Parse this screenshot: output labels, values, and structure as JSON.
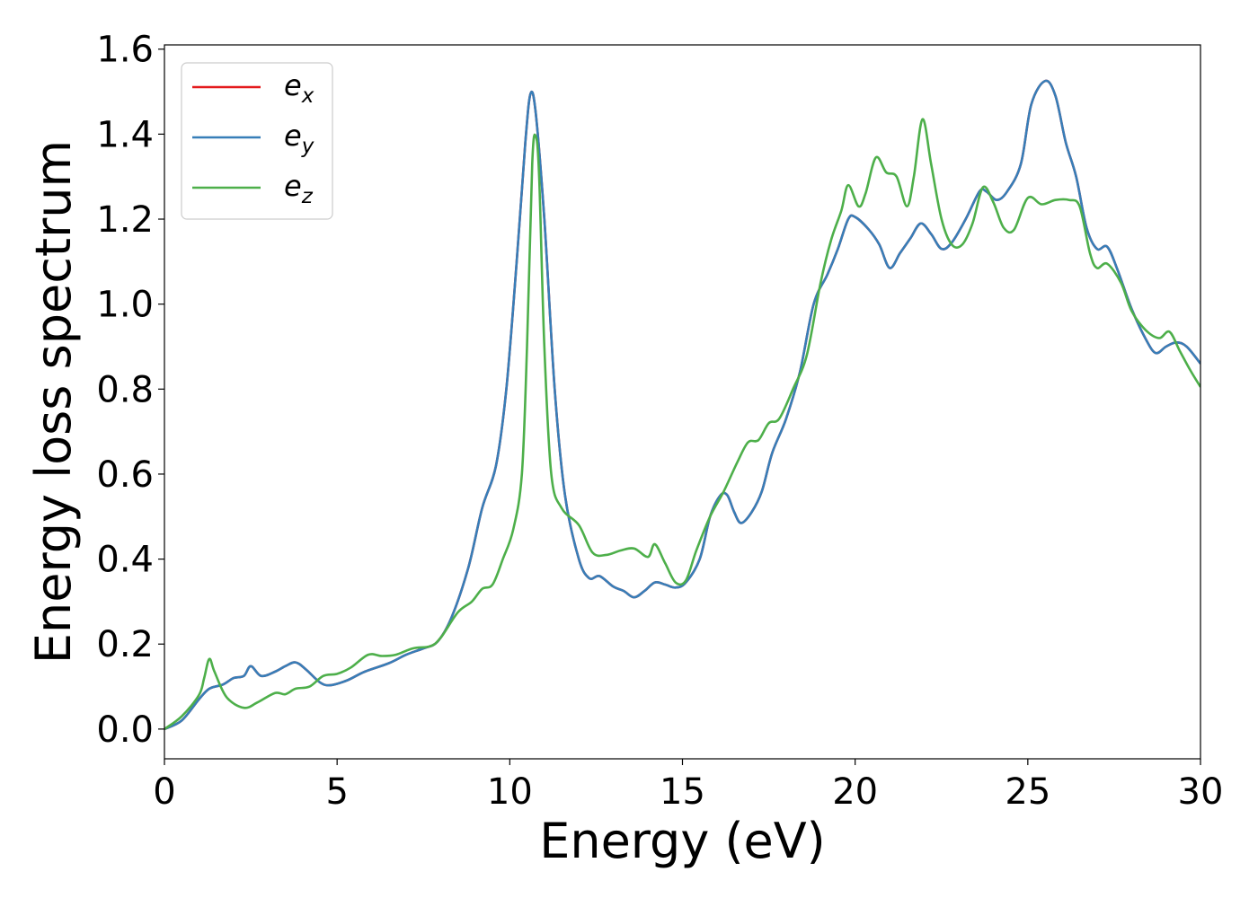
{
  "chart_data": {
    "type": "line",
    "title": "",
    "xlabel": "Energy (eV)",
    "ylabel": "Energy loss spectrum",
    "xlim": [
      0,
      30
    ],
    "ylim": [
      -0.07,
      1.61
    ],
    "xticks": [
      0,
      5,
      10,
      15,
      20,
      25,
      30
    ],
    "xtick_labels": [
      "0",
      "5",
      "10",
      "15",
      "20",
      "25",
      "30"
    ],
    "yticks": [
      0.0,
      0.2,
      0.4,
      0.6,
      0.8,
      1.0,
      1.2,
      1.4,
      1.6
    ],
    "ytick_labels": [
      "0.0",
      "0.2",
      "0.4",
      "0.6",
      "0.8",
      "1.0",
      "1.2",
      "1.4",
      "1.6"
    ],
    "grid": false,
    "legend_position": "top-left",
    "series": [
      {
        "name": "e_x",
        "label_base": "e",
        "label_sub": "x",
        "color": "#e41a1c",
        "points": [
          [
            0,
            0
          ],
          [
            0.5,
            0.02
          ],
          [
            1,
            0.07
          ],
          [
            1.3,
            0.095
          ],
          [
            1.7,
            0.105
          ],
          [
            2,
            0.12
          ],
          [
            2.3,
            0.125
          ],
          [
            2.5,
            0.148
          ],
          [
            2.8,
            0.125
          ],
          [
            3.2,
            0.135
          ],
          [
            3.5,
            0.148
          ],
          [
            3.8,
            0.157
          ],
          [
            4.1,
            0.14
          ],
          [
            4.5,
            0.11
          ],
          [
            4.8,
            0.103
          ],
          [
            5.3,
            0.115
          ],
          [
            5.8,
            0.135
          ],
          [
            6.5,
            0.155
          ],
          [
            7,
            0.175
          ],
          [
            7.5,
            0.19
          ],
          [
            7.9,
            0.205
          ],
          [
            8.3,
            0.26
          ],
          [
            8.8,
            0.38
          ],
          [
            9.2,
            0.52
          ],
          [
            9.6,
            0.62
          ],
          [
            9.9,
            0.8
          ],
          [
            10.2,
            1.1
          ],
          [
            10.45,
            1.38
          ],
          [
            10.6,
            1.495
          ],
          [
            10.75,
            1.45
          ],
          [
            11,
            1.2
          ],
          [
            11.3,
            0.8
          ],
          [
            11.6,
            0.55
          ],
          [
            12,
            0.4
          ],
          [
            12.3,
            0.355
          ],
          [
            12.6,
            0.36
          ],
          [
            13,
            0.335
          ],
          [
            13.3,
            0.325
          ],
          [
            13.6,
            0.31
          ],
          [
            13.9,
            0.325
          ],
          [
            14.2,
            0.345
          ],
          [
            14.5,
            0.34
          ],
          [
            14.8,
            0.333
          ],
          [
            15.1,
            0.345
          ],
          [
            15.5,
            0.4
          ],
          [
            15.8,
            0.5
          ],
          [
            16.1,
            0.55
          ],
          [
            16.3,
            0.55
          ],
          [
            16.5,
            0.51
          ],
          [
            16.7,
            0.485
          ],
          [
            17,
            0.51
          ],
          [
            17.3,
            0.56
          ],
          [
            17.6,
            0.65
          ],
          [
            18,
            0.73
          ],
          [
            18.4,
            0.84
          ],
          [
            18.8,
            1.0
          ],
          [
            19.2,
            1.07
          ],
          [
            19.5,
            1.13
          ],
          [
            19.8,
            1.2
          ],
          [
            20,
            1.205
          ],
          [
            20.4,
            1.175
          ],
          [
            20.7,
            1.14
          ],
          [
            21,
            1.085
          ],
          [
            21.3,
            1.12
          ],
          [
            21.6,
            1.155
          ],
          [
            21.9,
            1.19
          ],
          [
            22.2,
            1.165
          ],
          [
            22.5,
            1.13
          ],
          [
            22.8,
            1.145
          ],
          [
            23.2,
            1.2
          ],
          [
            23.6,
            1.265
          ],
          [
            23.8,
            1.265
          ],
          [
            24.1,
            1.245
          ],
          [
            24.4,
            1.265
          ],
          [
            24.8,
            1.33
          ],
          [
            25.1,
            1.47
          ],
          [
            25.5,
            1.525
          ],
          [
            25.8,
            1.49
          ],
          [
            26.1,
            1.38
          ],
          [
            26.4,
            1.3
          ],
          [
            26.7,
            1.18
          ],
          [
            27,
            1.13
          ],
          [
            27.3,
            1.135
          ],
          [
            27.6,
            1.08
          ],
          [
            28,
            0.99
          ],
          [
            28.4,
            0.92
          ],
          [
            28.7,
            0.885
          ],
          [
            29,
            0.9
          ],
          [
            29.3,
            0.91
          ],
          [
            29.6,
            0.9
          ],
          [
            30,
            0.86
          ]
        ]
      },
      {
        "name": "e_y",
        "label_base": "e",
        "label_sub": "y",
        "color": "#377eb8",
        "points": [
          [
            0,
            0
          ],
          [
            0.5,
            0.02
          ],
          [
            1,
            0.07
          ],
          [
            1.3,
            0.095
          ],
          [
            1.7,
            0.105
          ],
          [
            2,
            0.12
          ],
          [
            2.3,
            0.125
          ],
          [
            2.5,
            0.148
          ],
          [
            2.8,
            0.125
          ],
          [
            3.2,
            0.135
          ],
          [
            3.5,
            0.148
          ],
          [
            3.8,
            0.157
          ],
          [
            4.1,
            0.14
          ],
          [
            4.5,
            0.11
          ],
          [
            4.8,
            0.103
          ],
          [
            5.3,
            0.115
          ],
          [
            5.8,
            0.135
          ],
          [
            6.5,
            0.155
          ],
          [
            7,
            0.175
          ],
          [
            7.5,
            0.19
          ],
          [
            7.9,
            0.205
          ],
          [
            8.3,
            0.26
          ],
          [
            8.8,
            0.38
          ],
          [
            9.2,
            0.52
          ],
          [
            9.6,
            0.62
          ],
          [
            9.9,
            0.8
          ],
          [
            10.2,
            1.1
          ],
          [
            10.45,
            1.38
          ],
          [
            10.6,
            1.495
          ],
          [
            10.75,
            1.45
          ],
          [
            11,
            1.2
          ],
          [
            11.3,
            0.8
          ],
          [
            11.6,
            0.55
          ],
          [
            12,
            0.4
          ],
          [
            12.3,
            0.355
          ],
          [
            12.6,
            0.36
          ],
          [
            13,
            0.335
          ],
          [
            13.3,
            0.325
          ],
          [
            13.6,
            0.31
          ],
          [
            13.9,
            0.325
          ],
          [
            14.2,
            0.345
          ],
          [
            14.5,
            0.34
          ],
          [
            14.8,
            0.333
          ],
          [
            15.1,
            0.345
          ],
          [
            15.5,
            0.4
          ],
          [
            15.8,
            0.5
          ],
          [
            16.1,
            0.55
          ],
          [
            16.3,
            0.55
          ],
          [
            16.5,
            0.51
          ],
          [
            16.7,
            0.485
          ],
          [
            17,
            0.51
          ],
          [
            17.3,
            0.56
          ],
          [
            17.6,
            0.65
          ],
          [
            18,
            0.73
          ],
          [
            18.4,
            0.84
          ],
          [
            18.8,
            1.0
          ],
          [
            19.2,
            1.07
          ],
          [
            19.5,
            1.13
          ],
          [
            19.8,
            1.2
          ],
          [
            20,
            1.205
          ],
          [
            20.4,
            1.175
          ],
          [
            20.7,
            1.14
          ],
          [
            21,
            1.085
          ],
          [
            21.3,
            1.12
          ],
          [
            21.6,
            1.155
          ],
          [
            21.9,
            1.19
          ],
          [
            22.2,
            1.165
          ],
          [
            22.5,
            1.13
          ],
          [
            22.8,
            1.145
          ],
          [
            23.2,
            1.2
          ],
          [
            23.6,
            1.265
          ],
          [
            23.8,
            1.265
          ],
          [
            24.1,
            1.245
          ],
          [
            24.4,
            1.265
          ],
          [
            24.8,
            1.33
          ],
          [
            25.1,
            1.47
          ],
          [
            25.5,
            1.525
          ],
          [
            25.8,
            1.49
          ],
          [
            26.1,
            1.38
          ],
          [
            26.4,
            1.3
          ],
          [
            26.7,
            1.18
          ],
          [
            27,
            1.13
          ],
          [
            27.3,
            1.135
          ],
          [
            27.6,
            1.08
          ],
          [
            28,
            0.99
          ],
          [
            28.4,
            0.92
          ],
          [
            28.7,
            0.885
          ],
          [
            29,
            0.9
          ],
          [
            29.3,
            0.91
          ],
          [
            29.6,
            0.9
          ],
          [
            30,
            0.86
          ]
        ]
      },
      {
        "name": "e_z",
        "label_base": "e",
        "label_sub": "z",
        "color": "#4daf4a",
        "points": [
          [
            0,
            0
          ],
          [
            0.5,
            0.03
          ],
          [
            1,
            0.08
          ],
          [
            1.15,
            0.12
          ],
          [
            1.3,
            0.165
          ],
          [
            1.45,
            0.135
          ],
          [
            1.8,
            0.075
          ],
          [
            2.3,
            0.05
          ],
          [
            2.7,
            0.063
          ],
          [
            3.2,
            0.085
          ],
          [
            3.5,
            0.082
          ],
          [
            3.8,
            0.095
          ],
          [
            4.2,
            0.1
          ],
          [
            4.6,
            0.125
          ],
          [
            5,
            0.13
          ],
          [
            5.4,
            0.145
          ],
          [
            5.9,
            0.175
          ],
          [
            6.3,
            0.172
          ],
          [
            6.7,
            0.175
          ],
          [
            7.2,
            0.19
          ],
          [
            7.7,
            0.195
          ],
          [
            8,
            0.215
          ],
          [
            8.5,
            0.275
          ],
          [
            8.9,
            0.3
          ],
          [
            9.2,
            0.33
          ],
          [
            9.5,
            0.34
          ],
          [
            9.8,
            0.4
          ],
          [
            10.1,
            0.47
          ],
          [
            10.35,
            0.6
          ],
          [
            10.5,
            0.9
          ],
          [
            10.65,
            1.33
          ],
          [
            10.75,
            1.395
          ],
          [
            10.85,
            1.3
          ],
          [
            11,
            0.9
          ],
          [
            11.2,
            0.6
          ],
          [
            11.5,
            0.52
          ],
          [
            12,
            0.48
          ],
          [
            12.4,
            0.415
          ],
          [
            12.8,
            0.41
          ],
          [
            13.2,
            0.42
          ],
          [
            13.6,
            0.425
          ],
          [
            14,
            0.405
          ],
          [
            14.2,
            0.435
          ],
          [
            14.5,
            0.39
          ],
          [
            14.8,
            0.345
          ],
          [
            15.1,
            0.35
          ],
          [
            15.4,
            0.42
          ],
          [
            15.8,
            0.5
          ],
          [
            16.2,
            0.56
          ],
          [
            16.6,
            0.63
          ],
          [
            16.9,
            0.675
          ],
          [
            17.2,
            0.68
          ],
          [
            17.5,
            0.72
          ],
          [
            17.8,
            0.73
          ],
          [
            18.2,
            0.8
          ],
          [
            18.6,
            0.88
          ],
          [
            19,
            1.05
          ],
          [
            19.3,
            1.15
          ],
          [
            19.6,
            1.22
          ],
          [
            19.8,
            1.28
          ],
          [
            20.1,
            1.23
          ],
          [
            20.3,
            1.26
          ],
          [
            20.6,
            1.345
          ],
          [
            20.9,
            1.31
          ],
          [
            21.2,
            1.3
          ],
          [
            21.5,
            1.23
          ],
          [
            21.7,
            1.3
          ],
          [
            21.95,
            1.435
          ],
          [
            22.2,
            1.33
          ],
          [
            22.5,
            1.2
          ],
          [
            22.8,
            1.14
          ],
          [
            23.1,
            1.14
          ],
          [
            23.4,
            1.19
          ],
          [
            23.7,
            1.275
          ],
          [
            24,
            1.24
          ],
          [
            24.3,
            1.18
          ],
          [
            24.6,
            1.175
          ],
          [
            25,
            1.25
          ],
          [
            25.4,
            1.235
          ],
          [
            25.8,
            1.245
          ],
          [
            26.2,
            1.245
          ],
          [
            26.5,
            1.23
          ],
          [
            26.8,
            1.12
          ],
          [
            27,
            1.085
          ],
          [
            27.3,
            1.095
          ],
          [
            27.7,
            1.05
          ],
          [
            28,
            0.985
          ],
          [
            28.4,
            0.94
          ],
          [
            28.8,
            0.92
          ],
          [
            29.1,
            0.935
          ],
          [
            29.4,
            0.89
          ],
          [
            29.7,
            0.845
          ],
          [
            30,
            0.805
          ]
        ]
      }
    ]
  }
}
